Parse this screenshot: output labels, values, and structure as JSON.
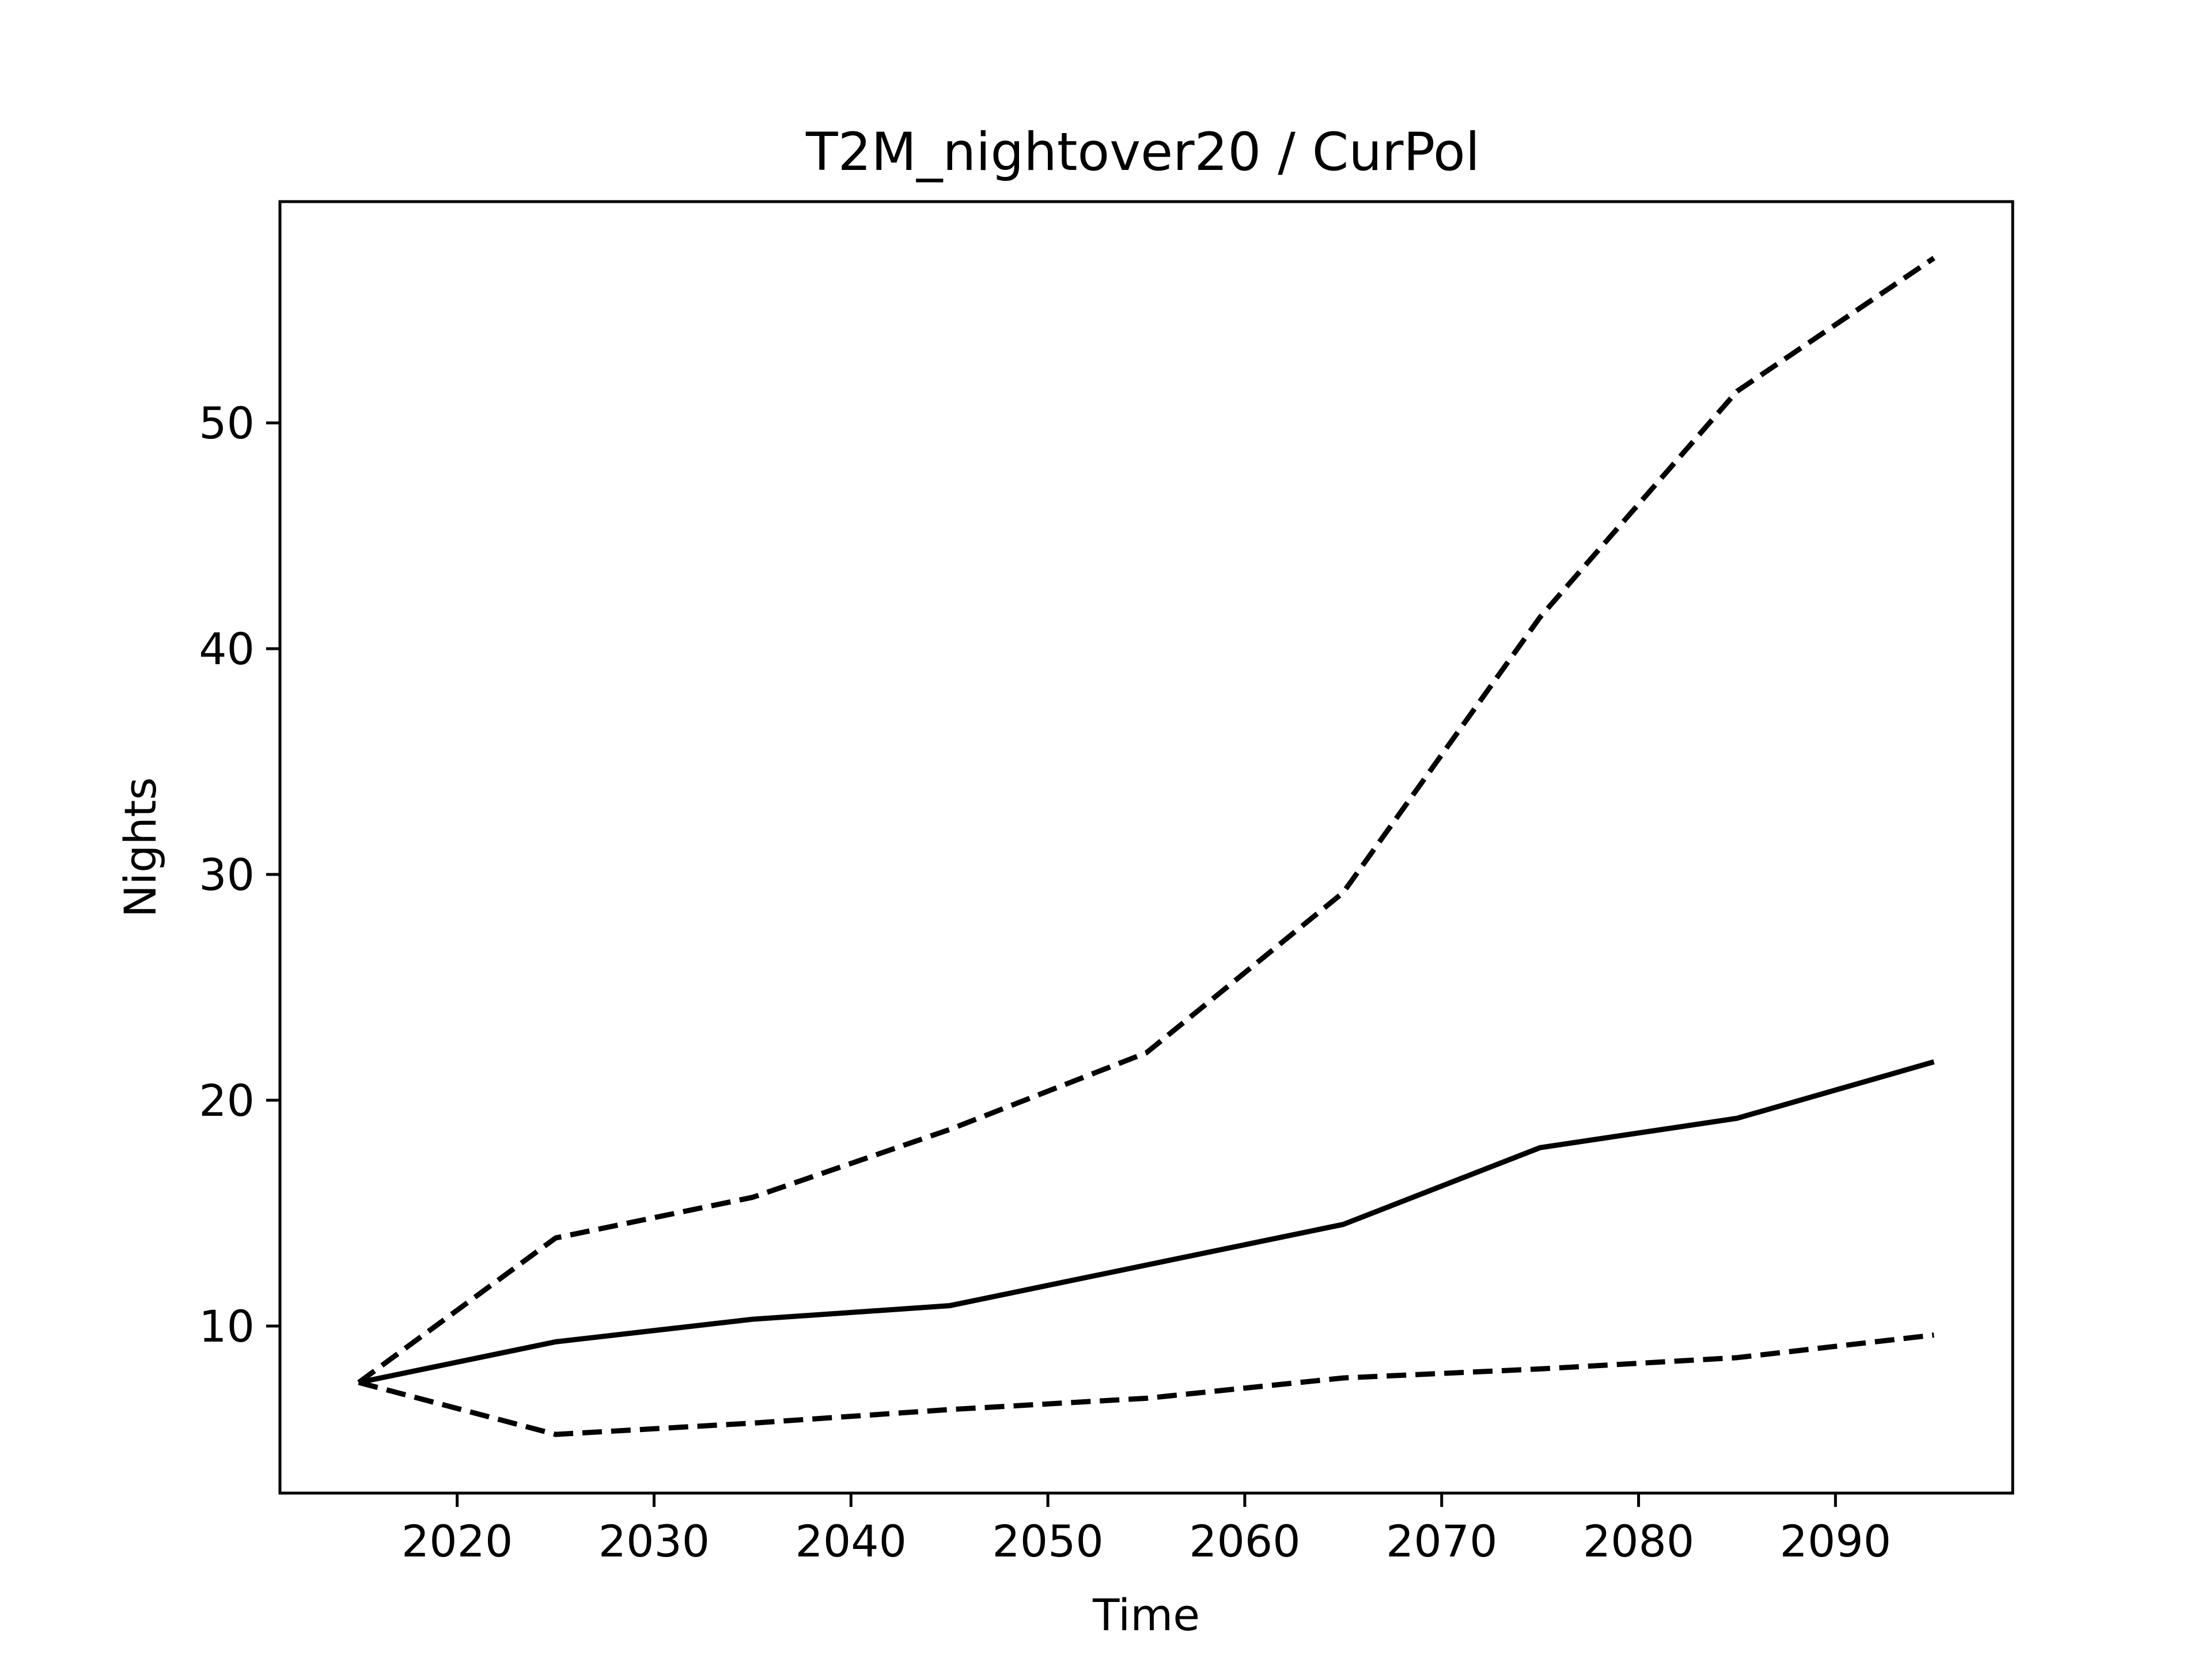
{
  "chart_data": {
    "type": "line",
    "title": "T2M_nightover20 / CurPol",
    "xlabel": "Time",
    "ylabel": "Nights",
    "xlim": [
      2011,
      2099
    ],
    "ylim": [
      2.6,
      59.8
    ],
    "x_ticks": [
      2020,
      2030,
      2040,
      2050,
      2060,
      2070,
      2080,
      2090
    ],
    "y_ticks": [
      10,
      20,
      30,
      40,
      50
    ],
    "grid": false,
    "x": [
      2015,
      2025,
      2035,
      2045,
      2055,
      2065,
      2075,
      2085,
      2095
    ],
    "series": [
      {
        "style": "solid",
        "color": "#000000",
        "values": [
          7.5,
          9.3,
          10.3,
          10.9,
          12.7,
          14.5,
          17.9,
          19.2,
          21.7
        ]
      },
      {
        "style": "dashed",
        "color": "#000000",
        "values": [
          7.5,
          13.9,
          15.7,
          18.7,
          22.1,
          29.2,
          41.4,
          51.4,
          57.3
        ]
      },
      {
        "style": "dashed",
        "color": "#000000",
        "values": [
          7.5,
          5.2,
          5.7,
          6.3,
          6.8,
          7.7,
          8.1,
          8.6,
          9.6
        ]
      }
    ]
  }
}
